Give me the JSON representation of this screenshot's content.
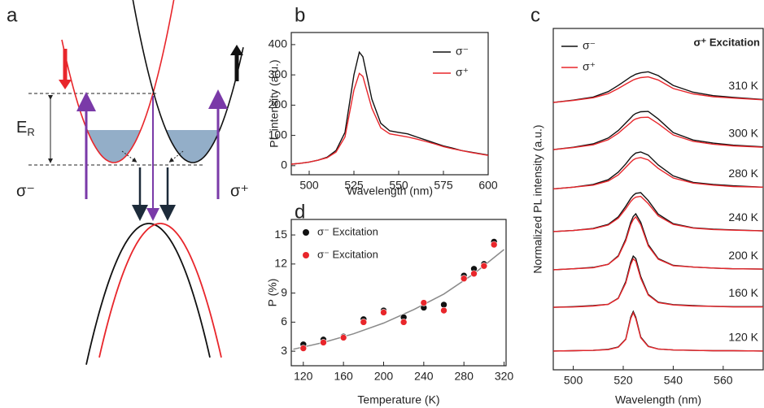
{
  "panel_a": {
    "panel_label": "a",
    "energy_label": {
      "main": "E",
      "sub": "R"
    },
    "left_label": "σ⁻",
    "right_label": "σ⁺"
  },
  "chart_data": [
    {
      "type": "line",
      "panel_label": "b",
      "x_label": "Wavelength (nm)",
      "y_label": "PL intensity (a.u.)",
      "x": [
        490,
        495,
        500,
        505,
        510,
        515,
        520,
        525,
        528,
        530,
        535,
        540,
        545,
        550,
        555,
        560,
        565,
        570,
        575,
        580,
        585,
        590,
        595,
        600
      ],
      "series": [
        {
          "name": "σ⁻",
          "color": "#111111",
          "values": [
            5,
            8,
            12,
            18,
            28,
            50,
            110,
            300,
            375,
            360,
            220,
            140,
            115,
            110,
            105,
            95,
            85,
            75,
            65,
            58,
            50,
            45,
            40,
            35
          ]
        },
        {
          "name": "σ⁺",
          "color": "#e8262b",
          "values": [
            5,
            8,
            12,
            18,
            26,
            45,
            95,
            250,
            305,
            295,
            190,
            125,
            105,
            100,
            95,
            88,
            80,
            72,
            63,
            56,
            50,
            44,
            39,
            34
          ]
        }
      ],
      "xlim": [
        490,
        600
      ],
      "xticks": [
        500,
        525,
        550,
        575,
        600
      ],
      "ylim": [
        -30,
        440
      ],
      "yticks": [
        0,
        100,
        200,
        300,
        400
      ]
    },
    {
      "type": "scatter",
      "panel_label": "d",
      "x_label": "Temperature (K)",
      "y_label": "P (%)",
      "x": [
        120,
        140,
        160,
        180,
        200,
        220,
        240,
        260,
        280,
        290,
        300,
        310
      ],
      "series": [
        {
          "name": "σ⁻ Excitation",
          "color": "#111111",
          "values": [
            3.7,
            4.2,
            4.5,
            6.3,
            7.2,
            6.5,
            7.5,
            7.8,
            10.8,
            11.5,
            12.0,
            14.3
          ]
        },
        {
          "name": "σ⁻ Excitation",
          "color": "#e8262b",
          "values": [
            3.3,
            3.9,
            4.4,
            6.0,
            7.0,
            6.0,
            8.0,
            7.2,
            10.5,
            11.0,
            11.8,
            14.0
          ]
        }
      ],
      "fit": {
        "color": "#8a8a8a",
        "x": [
          110,
          140,
          170,
          200,
          230,
          260,
          290,
          320
        ],
        "values": [
          3.2,
          3.9,
          4.8,
          5.9,
          7.3,
          8.9,
          11.0,
          13.5
        ]
      },
      "xlim": [
        108,
        322
      ],
      "xticks": [
        120,
        160,
        200,
        240,
        280,
        320
      ],
      "ylim": [
        1.5,
        16.6
      ],
      "yticks": [
        3,
        6,
        9,
        12,
        15
      ]
    },
    {
      "type": "line",
      "panel_label": "c",
      "x_label": "Wavelength (nm)",
      "y_label": "Normalized PL intensity (a.u.)",
      "annotation": "σ⁺ Excitation",
      "legend": [
        {
          "name": "σ⁻",
          "color": "#111111"
        },
        {
          "name": "σ⁺",
          "color": "#e8262b"
        }
      ],
      "x": [
        492,
        500,
        508,
        514,
        518,
        521,
        523,
        524,
        525,
        527,
        530,
        534,
        540,
        548,
        556,
        564,
        576
      ],
      "groups": [
        {
          "label": "120 K",
          "series": [
            {
              "color": "#111111",
              "values": [
                0.55,
                0.56,
                0.57,
                0.6,
                0.67,
                0.9,
                1.54,
                1.71,
                1.54,
                0.96,
                0.69,
                0.61,
                0.58,
                0.57,
                0.56,
                0.56,
                0.55
              ]
            },
            {
              "color": "#e8262b",
              "values": [
                0.55,
                0.56,
                0.57,
                0.59,
                0.66,
                0.89,
                1.5,
                1.67,
                1.5,
                0.94,
                0.68,
                0.61,
                0.58,
                0.57,
                0.56,
                0.56,
                0.55
              ]
            }
          ]
        },
        {
          "label": "160 K",
          "series": [
            {
              "color": "#111111",
              "values": [
                1.83,
                1.85,
                1.88,
                1.92,
                2.1,
                2.58,
                3.15,
                3.33,
                3.26,
                2.73,
                2.21,
                1.98,
                1.91,
                1.88,
                1.86,
                1.85,
                1.85
              ]
            },
            {
              "color": "#e8262b",
              "values": [
                1.83,
                1.84,
                1.87,
                1.92,
                2.09,
                2.54,
                3.08,
                3.25,
                3.18,
                2.68,
                2.19,
                1.97,
                1.9,
                1.87,
                1.86,
                1.84,
                1.84
              ]
            }
          ]
        },
        {
          "label": "200 K",
          "series": [
            {
              "color": "#111111",
              "values": [
                2.93,
                2.96,
                3.0,
                3.09,
                3.34,
                3.83,
                4.32,
                4.49,
                4.57,
                4.32,
                3.67,
                3.26,
                3.06,
                3.01,
                2.98,
                2.96,
                2.95
              ]
            },
            {
              "color": "#e8262b",
              "values": [
                2.93,
                2.96,
                2.99,
                3.09,
                3.32,
                3.78,
                4.25,
                4.4,
                4.48,
                4.25,
                3.63,
                3.24,
                3.05,
                3.01,
                2.98,
                2.96,
                2.95
              ]
            }
          ]
        },
        {
          "label": "240 K",
          "series": [
            {
              "color": "#111111",
              "values": [
                4.05,
                4.08,
                4.14,
                4.26,
                4.48,
                4.79,
                5.02,
                5.11,
                5.17,
                5.19,
                4.96,
                4.56,
                4.28,
                4.16,
                4.12,
                4.1,
                4.07
              ]
            },
            {
              "color": "#e8262b",
              "values": [
                4.05,
                4.08,
                4.13,
                4.24,
                4.44,
                4.72,
                4.93,
                5.01,
                5.06,
                5.08,
                4.87,
                4.51,
                4.26,
                4.15,
                4.11,
                4.09,
                4.07
              ]
            }
          ]
        },
        {
          "label": "280 K",
          "series": [
            {
              "color": "#111111",
              "values": [
                5.3,
                5.35,
                5.43,
                5.57,
                5.79,
                6.03,
                6.22,
                6.29,
                6.35,
                6.38,
                6.29,
                6.0,
                5.68,
                5.49,
                5.43,
                5.39,
                5.35
              ]
            },
            {
              "color": "#e8262b",
              "values": [
                5.3,
                5.35,
                5.41,
                5.53,
                5.71,
                5.93,
                6.08,
                6.15,
                6.19,
                6.22,
                6.15,
                5.9,
                5.62,
                5.47,
                5.41,
                5.37,
                5.35
              ]
            }
          ]
        },
        {
          "label": "300 K",
          "series": [
            {
              "color": "#111111",
              "values": [
                6.45,
                6.52,
                6.62,
                6.79,
                7.01,
                7.23,
                7.38,
                7.46,
                7.51,
                7.56,
                7.57,
                7.35,
                6.95,
                6.73,
                6.64,
                6.58,
                6.53
              ]
            },
            {
              "color": "#e8262b",
              "values": [
                6.45,
                6.51,
                6.59,
                6.74,
                6.93,
                7.12,
                7.24,
                7.31,
                7.35,
                7.39,
                7.4,
                7.21,
                6.88,
                6.69,
                6.61,
                6.56,
                6.52
              ]
            }
          ]
        },
        {
          "label": "310 K",
          "series": [
            {
              "color": "#111111",
              "values": [
                7.83,
                7.9,
                7.99,
                8.15,
                8.33,
                8.48,
                8.58,
                8.62,
                8.66,
                8.7,
                8.73,
                8.62,
                8.33,
                8.13,
                8.03,
                7.98,
                7.92
              ]
            },
            {
              "color": "#e8262b",
              "values": [
                7.83,
                7.89,
                7.97,
                8.09,
                8.24,
                8.37,
                8.45,
                8.49,
                8.52,
                8.56,
                8.58,
                8.49,
                8.24,
                8.08,
                8.0,
                7.96,
                7.91
              ]
            }
          ]
        }
      ],
      "xlim": [
        492,
        576
      ],
      "xticks": [
        500,
        520,
        540,
        560
      ],
      "ylim": [
        0,
        10
      ]
    }
  ]
}
